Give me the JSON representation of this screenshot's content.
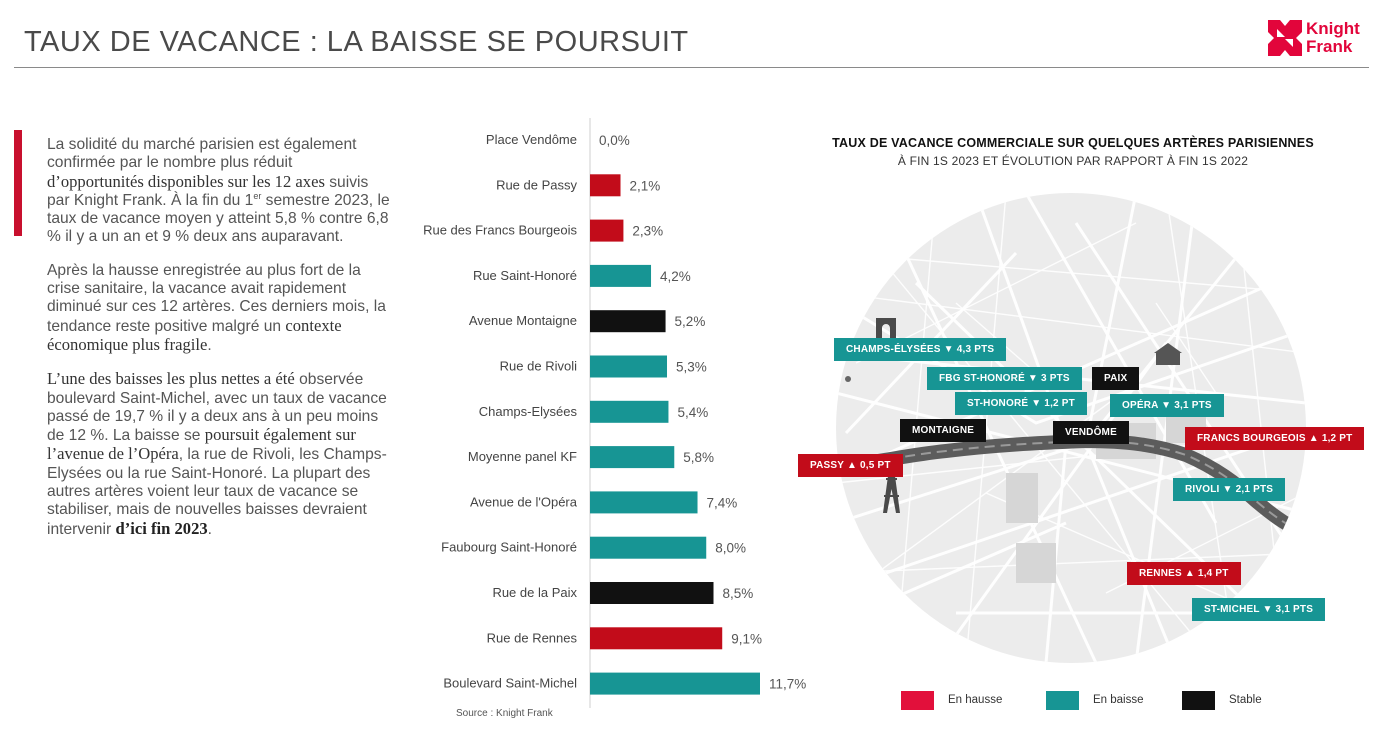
{
  "header": {
    "title": "TAUX DE VACANCE : LA BAISSE SE POURSUIT",
    "logo_line1": "Knight",
    "logo_line2": "Frank"
  },
  "colors": {
    "rise": "#c20c1a",
    "fall": "#179594",
    "stable": "#111111",
    "accent": "#c8102e",
    "logo": "#e2053b"
  },
  "body": {
    "p1_a": "La solidité du marché parisien est également confirmée par le nombre plus réduit ",
    "p1_b": "d’opportunités disponibles sur les 12 axes",
    "p1_c": " suivis par Knight Frank. À la fin du 1",
    "p1_sup": "er",
    "p1_d": " semestre 2023, le taux de vacance moyen y atteint 5,8 % contre 6,8 % il y a un an et 9 % deux ans auparavant.",
    "p2_a": "Après la hausse enregistrée au plus fort de la crise sanitaire, la vacance avait rapidement diminué sur ces 12 artères. Ces derniers mois, la tendance reste positive malgré un ",
    "p2_b": "contexte économique plus fragile",
    "p2_c": ".",
    "p3_a": "L’une des baisses les plus nettes a été",
    "p3_b": " observée boulevard Saint-Michel, avec un taux de vacance passé de 19,7 % il y a deux ans à un peu moins de 12 %. La baisse se ",
    "p3_c": "poursuit également sur l’avenue de l’Opéra",
    "p3_d": ", la rue de Rivoli, les Champs-Elysées ou la rue Saint-Honoré. La plupart des autres artères voient leur taux de vacance se stabiliser, mais de nouvelles baisses devraient intervenir ",
    "p3_e": "d’ici fin 2023",
    "p3_f": "."
  },
  "chart_data": {
    "type": "bar",
    "orientation": "horizontal",
    "categories": [
      "Place Vendôme",
      "Rue de Passy",
      "Rue des Francs Bourgeois",
      "Rue Saint-Honoré",
      "Avenue Montaigne",
      "Rue de Rivoli",
      "Champs-Elysées",
      "Moyenne panel KF",
      "Avenue de l'Opéra",
      "Faubourg Saint-Honoré",
      "Rue de la Paix",
      "Rue de Rennes",
      "Boulevard Saint-Michel"
    ],
    "values": [
      0.0,
      2.1,
      2.3,
      4.2,
      5.2,
      5.3,
      5.4,
      5.8,
      7.4,
      8.0,
      8.5,
      9.1,
      11.7
    ],
    "value_labels": [
      "0,0%",
      "2,1%",
      "2,3%",
      "4,2%",
      "5,2%",
      "5,3%",
      "5,4%",
      "5,8%",
      "7,4%",
      "8,0%",
      "8,5%",
      "9,1%",
      "11,7%"
    ],
    "trend": [
      "stable",
      "up",
      "up",
      "down",
      "stable",
      "down",
      "down",
      "down",
      "down",
      "down",
      "stable",
      "up",
      "down"
    ],
    "xlim": [
      0,
      12.5
    ],
    "source": "Source : Knight Frank",
    "xlabel": "",
    "ylabel": ""
  },
  "map": {
    "title": "TAUX DE VACANCE COMMERCIALE SUR QUELQUES ARTÈRES PARISIENNES",
    "subtitle": "À FIN 1S 2023 ET ÉVOLUTION PAR RAPPORT À FIN 1S 2022",
    "tags": [
      {
        "name": "champs-elysees",
        "text": "CHAMPS-ÉLYSÉES ▼ 4,3 PTS",
        "trend": "down"
      },
      {
        "name": "fbg-st-honore",
        "text": "FBG ST-HONORÉ ▼ 3 PTS",
        "trend": "down"
      },
      {
        "name": "paix",
        "text": "PAIX",
        "trend": "stable"
      },
      {
        "name": "st-honore",
        "text": "ST-HONORÉ ▼ 1,2 PT",
        "trend": "down"
      },
      {
        "name": "opera",
        "text": "OPÉRA ▼ 3,1 PTS",
        "trend": "down"
      },
      {
        "name": "montaigne",
        "text": "MONTAIGNE",
        "trend": "stable"
      },
      {
        "name": "vendome",
        "text": "VENDÔME",
        "trend": "stable"
      },
      {
        "name": "francs-bourgeois",
        "text": "FRANCS BOURGEOIS ▲ 1,2 PT",
        "trend": "up"
      },
      {
        "name": "passy",
        "text": "PASSY ▲ 0,5 PT",
        "trend": "up"
      },
      {
        "name": "rivoli",
        "text": "RIVOLI ▼ 2,1 PTS",
        "trend": "down"
      },
      {
        "name": "rennes",
        "text": "RENNES ▲ 1,4 PT",
        "trend": "up"
      },
      {
        "name": "st-michel",
        "text": "ST-MICHEL ▼ 3,1 PTS",
        "trend": "down"
      }
    ]
  },
  "legend": {
    "rise": "En hausse",
    "fall": "En baisse",
    "stable": "Stable"
  }
}
